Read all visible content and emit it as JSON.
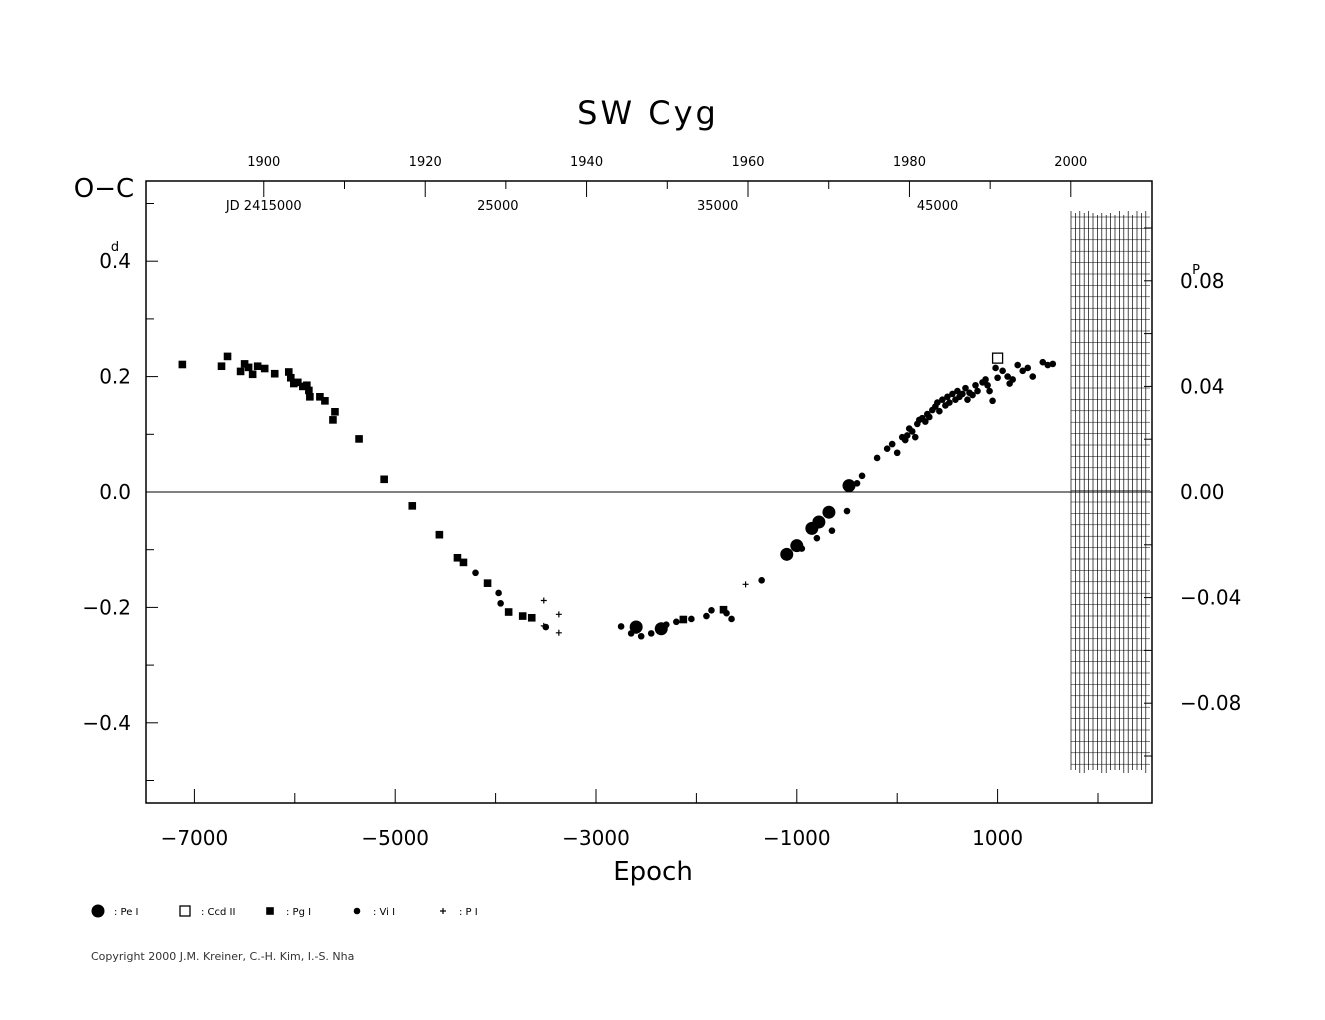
{
  "chart_data": {
    "type": "scatter",
    "title": "SW  Cyg",
    "xlabel": "Epoch",
    "ylabel": "O−C",
    "y_unit_mark": "d",
    "y2_unit_mark": "P",
    "xlim": [
      -7500,
      2500
    ],
    "ylim": [
      -0.54,
      0.54
    ],
    "y2lim": [
      -0.1136,
      0.1136
    ],
    "x_ticks": [
      -7000,
      -5000,
      -3000,
      -1000,
      1000
    ],
    "x_tick_labels": [
      "−7000",
      "−5000",
      "−3000",
      "−1000",
      "1000"
    ],
    "y_ticks": [
      0.4,
      0.2,
      0.0,
      -0.2,
      -0.4
    ],
    "y_tick_labels": [
      "0.4",
      "0.2",
      "0.0",
      "−0.2",
      "−0.4"
    ],
    "y2_ticks": [
      0.08,
      0.04,
      0.0,
      -0.04,
      -0.08
    ],
    "y2_tick_labels": [
      "0.08",
      "0.04",
      "0.00",
      "−0.04",
      "−0.08"
    ],
    "top_year_ticks": [
      {
        "epoch": -6309,
        "label": "1900"
      },
      {
        "epoch": -4701,
        "label": "1920"
      },
      {
        "epoch": -3094,
        "label": "1940"
      },
      {
        "epoch": -1486,
        "label": "1960"
      },
      {
        "epoch": 122,
        "label": "1980"
      },
      {
        "epoch": 1729,
        "label": "2000"
      }
    ],
    "top_jd_labels": [
      {
        "epoch": -6309,
        "label": "JD  2415000"
      },
      {
        "epoch": -3978,
        "label": "25000"
      },
      {
        "epoch": -1788,
        "label": "35000"
      },
      {
        "epoch": 402,
        "label": "45000"
      }
    ],
    "legend": [
      {
        "symbol": "circle-large",
        "label": ": Pe  I"
      },
      {
        "symbol": "square-open",
        "label": ": Ccd  II"
      },
      {
        "symbol": "square",
        "label": ": Pg  I"
      },
      {
        "symbol": "circle-small",
        "label": ": Vi  I"
      },
      {
        "symbol": "plus",
        "label": ": P  I"
      }
    ],
    "series": [
      {
        "name": "Pe I",
        "symbol": "circle-large",
        "points": [
          [
            -2600,
            -0.234
          ],
          [
            -2350,
            -0.237
          ],
          [
            -1100,
            -0.108
          ],
          [
            -1000,
            -0.093
          ],
          [
            -850,
            -0.063
          ],
          [
            -780,
            -0.052
          ],
          [
            -680,
            -0.035
          ],
          [
            -480,
            0.011
          ]
        ]
      },
      {
        "name": "Ccd II",
        "symbol": "square-open",
        "points": [
          [
            1000,
            0.232
          ]
        ]
      },
      {
        "name": "Pg I",
        "symbol": "square",
        "points": [
          [
            -7120,
            0.221
          ],
          [
            -6730,
            0.218
          ],
          [
            -6670,
            0.235
          ],
          [
            -6540,
            0.209
          ],
          [
            -6500,
            0.222
          ],
          [
            -6460,
            0.216
          ],
          [
            -6420,
            0.204
          ],
          [
            -6370,
            0.218
          ],
          [
            -6300,
            0.214
          ],
          [
            -6200,
            0.205
          ],
          [
            -6060,
            0.208
          ],
          [
            -6040,
            0.198
          ],
          [
            -6010,
            0.188
          ],
          [
            -5970,
            0.19
          ],
          [
            -5920,
            0.183
          ],
          [
            -5880,
            0.185
          ],
          [
            -5860,
            0.176
          ],
          [
            -5850,
            0.165
          ],
          [
            -5750,
            0.165
          ],
          [
            -5700,
            0.158
          ],
          [
            -5600,
            0.139
          ],
          [
            -5620,
            0.125
          ],
          [
            -5360,
            0.092
          ],
          [
            -5110,
            0.022
          ],
          [
            -4830,
            -0.024
          ],
          [
            -4560,
            -0.074
          ],
          [
            -4380,
            -0.114
          ],
          [
            -4320,
            -0.122
          ],
          [
            -4080,
            -0.158
          ],
          [
            -3870,
            -0.208
          ],
          [
            -3730,
            -0.215
          ],
          [
            -3640,
            -0.218
          ],
          [
            -2130,
            -0.221
          ],
          [
            -1730,
            -0.204
          ]
        ]
      },
      {
        "name": "Vi I",
        "symbol": "circle-small",
        "points": [
          [
            -4200,
            -0.14
          ],
          [
            -3970,
            -0.175
          ],
          [
            -3950,
            -0.193
          ],
          [
            -3500,
            -0.234
          ],
          [
            -2750,
            -0.233
          ],
          [
            -2650,
            -0.245
          ],
          [
            -2600,
            -0.24
          ],
          [
            -2550,
            -0.25
          ],
          [
            -2450,
            -0.245
          ],
          [
            -2300,
            -0.23
          ],
          [
            -2200,
            -0.225
          ],
          [
            -2050,
            -0.22
          ],
          [
            -1900,
            -0.215
          ],
          [
            -1850,
            -0.205
          ],
          [
            -1700,
            -0.21
          ],
          [
            -1650,
            -0.22
          ],
          [
            -1350,
            -0.153
          ],
          [
            -950,
            -0.098
          ],
          [
            -800,
            -0.08
          ],
          [
            -650,
            -0.067
          ],
          [
            -500,
            -0.033
          ],
          [
            -400,
            0.015
          ],
          [
            -350,
            0.028
          ],
          [
            -200,
            0.059
          ],
          [
            -100,
            0.075
          ],
          [
            -50,
            0.083
          ],
          [
            0,
            0.068
          ],
          [
            50,
            0.095
          ],
          [
            80,
            0.09
          ],
          [
            100,
            0.098
          ],
          [
            120,
            0.11
          ],
          [
            150,
            0.105
          ],
          [
            180,
            0.095
          ],
          [
            200,
            0.118
          ],
          [
            220,
            0.125
          ],
          [
            250,
            0.128
          ],
          [
            280,
            0.122
          ],
          [
            300,
            0.135
          ],
          [
            320,
            0.13
          ],
          [
            350,
            0.142
          ],
          [
            380,
            0.148
          ],
          [
            400,
            0.155
          ],
          [
            420,
            0.14
          ],
          [
            450,
            0.16
          ],
          [
            480,
            0.15
          ],
          [
            500,
            0.165
          ],
          [
            520,
            0.155
          ],
          [
            550,
            0.17
          ],
          [
            580,
            0.16
          ],
          [
            600,
            0.175
          ],
          [
            620,
            0.165
          ],
          [
            650,
            0.17
          ],
          [
            680,
            0.18
          ],
          [
            700,
            0.16
          ],
          [
            720,
            0.172
          ],
          [
            750,
            0.168
          ],
          [
            780,
            0.185
          ],
          [
            800,
            0.175
          ],
          [
            850,
            0.19
          ],
          [
            880,
            0.195
          ],
          [
            900,
            0.185
          ],
          [
            920,
            0.175
          ],
          [
            950,
            0.158
          ],
          [
            980,
            0.215
          ],
          [
            1050,
            0.21
          ],
          [
            1100,
            0.2
          ],
          [
            1150,
            0.195
          ],
          [
            1200,
            0.22
          ],
          [
            1250,
            0.21
          ],
          [
            1300,
            0.215
          ],
          [
            1350,
            0.2
          ],
          [
            1450,
            0.225
          ],
          [
            1500,
            0.22
          ],
          [
            1550,
            0.222
          ],
          [
            1000,
            0.198
          ],
          [
            1120,
            0.188
          ]
        ]
      },
      {
        "name": "P I",
        "symbol": "plus",
        "points": [
          [
            -3520,
            -0.188
          ],
          [
            -3520,
            -0.232
          ],
          [
            -3370,
            -0.212
          ],
          [
            -3370,
            -0.244
          ],
          [
            -1510,
            -0.16
          ]
        ]
      }
    ]
  },
  "copyright": "Copyright 2000 J.M. Kreiner, C.-H. Kim, I.-S. Nha"
}
